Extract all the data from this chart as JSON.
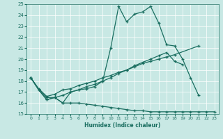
{
  "title": "",
  "xlabel": "Humidex (Indice chaleur)",
  "ylabel": "",
  "xlim": [
    -0.5,
    23.5
  ],
  "ylim": [
    15,
    25
  ],
  "xticks": [
    0,
    1,
    2,
    3,
    4,
    5,
    6,
    7,
    8,
    9,
    10,
    11,
    12,
    13,
    14,
    15,
    16,
    17,
    18,
    19,
    20,
    21,
    22,
    23
  ],
  "yticks": [
    15,
    16,
    17,
    18,
    19,
    20,
    21,
    22,
    23,
    24,
    25
  ],
  "bg_color": "#c8e8e4",
  "line_color": "#1a6e60",
  "series": [
    {
      "x": [
        0,
        1,
        2,
        3,
        4,
        5,
        6,
        7,
        8,
        9,
        10,
        11,
        12,
        13,
        14,
        15,
        16,
        17,
        18,
        19,
        20,
        21
      ],
      "y": [
        18.3,
        17.2,
        16.3,
        16.5,
        16.0,
        17.0,
        17.2,
        17.3,
        17.5,
        18.0,
        21.0,
        24.8,
        23.4,
        24.1,
        24.3,
        24.8,
        23.3,
        21.3,
        21.2,
        20.0,
        18.3,
        16.7
      ]
    },
    {
      "x": [
        0,
        1,
        2,
        3,
        4,
        5,
        6,
        7,
        8,
        9,
        10,
        11,
        12,
        13,
        14,
        15,
        16,
        17,
        18,
        19,
        20,
        21,
        22,
        23
      ],
      "y": [
        18.3,
        17.2,
        16.3,
        16.5,
        16.0,
        16.0,
        16.0,
        15.9,
        15.8,
        15.7,
        15.6,
        15.5,
        15.4,
        15.3,
        15.3,
        15.2,
        15.2,
        15.2,
        15.2,
        15.2,
        15.2,
        15.2,
        15.2,
        15.2
      ]
    },
    {
      "x": [
        0,
        1,
        2,
        3,
        4,
        5,
        6,
        7,
        8,
        9,
        10,
        11,
        12,
        13,
        14,
        15,
        16,
        17,
        18,
        19
      ],
      "y": [
        18.3,
        17.2,
        16.5,
        16.5,
        16.7,
        17.0,
        17.2,
        17.5,
        17.7,
        18.0,
        18.3,
        18.7,
        19.0,
        19.4,
        19.7,
        20.0,
        20.3,
        20.6,
        19.8,
        19.5
      ]
    },
    {
      "x": [
        0,
        1,
        2,
        3,
        4,
        5,
        6,
        7,
        8,
        9,
        10,
        11,
        12,
        13,
        14,
        15,
        16,
        17,
        18,
        21
      ],
      "y": [
        18.3,
        17.3,
        16.6,
        16.8,
        17.2,
        17.3,
        17.6,
        17.8,
        18.0,
        18.3,
        18.5,
        18.8,
        19.0,
        19.3,
        19.6,
        19.8,
        20.0,
        20.2,
        20.4,
        21.2
      ]
    }
  ]
}
